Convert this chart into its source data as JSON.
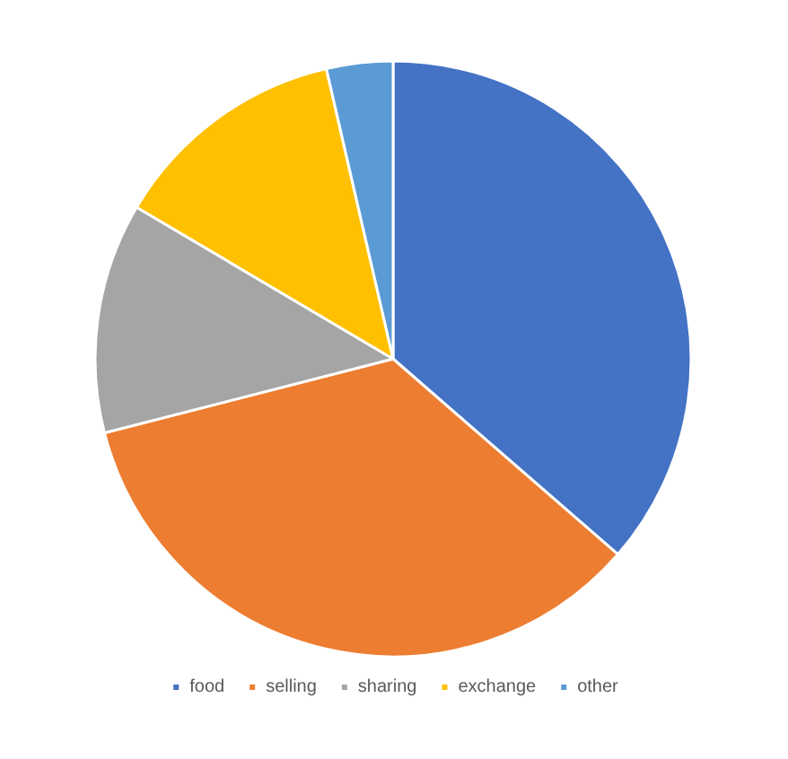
{
  "chart_data": {
    "type": "pie",
    "categories": [
      "food",
      "selling",
      "sharing",
      "exchange",
      "other"
    ],
    "values": [
      36.4,
      34.6,
      12.5,
      12.9,
      3.6
    ],
    "colors": [
      "#4472c4",
      "#ed7d31",
      "#a5a5a5",
      "#ffc000",
      "#5b9bd5"
    ],
    "legend": "bottom"
  }
}
